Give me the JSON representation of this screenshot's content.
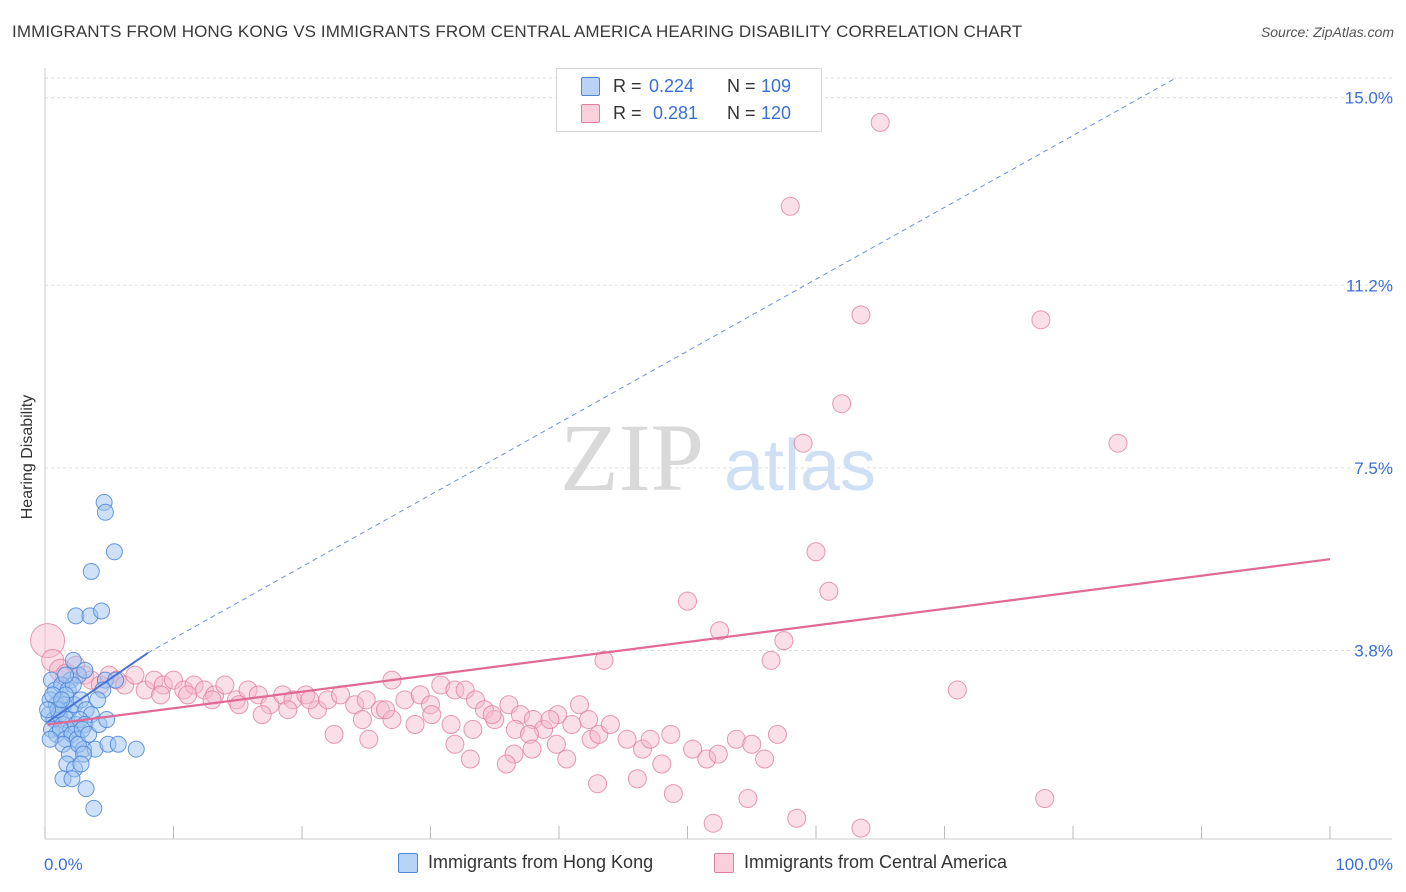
{
  "title": "IMMIGRANTS FROM HONG KONG VS IMMIGRANTS FROM CENTRAL AMERICA HEARING DISABILITY CORRELATION CHART",
  "source": "Source: ZipAtlas.com",
  "watermark": {
    "zip": "ZIP",
    "atlas": "atlas"
  },
  "colors": {
    "blue_fill": "#9ec3f2",
    "blue_stroke": "#4f86d8",
    "blue_line": "#4a73d8",
    "pink_fill": "#f5b8cb",
    "pink_stroke": "#e07fa0",
    "pink_line": "#e06a96",
    "tick_label": "#3b6fd6",
    "grid": "#dddddd"
  },
  "stats": [
    {
      "r_label": "R = ",
      "r_value": "0.224",
      "n_label": "N = ",
      "n_value": "109",
      "swatch": "blue"
    },
    {
      "r_label": "R = ",
      "r_value": "0.281",
      "n_label": "N = ",
      "n_value": "120",
      "swatch": "pink"
    }
  ],
  "chart_data": {
    "type": "scatter",
    "title": "IMMIGRANTS FROM HONG KONG VS IMMIGRANTS FROM CENTRAL AMERICA HEARING DISABILITY CORRELATION CHART",
    "xlabel": "",
    "ylabel": "Hearing Disability",
    "xlim": [
      0,
      100
    ],
    "ylim": [
      0,
      15.4
    ],
    "x_tick_labels": [
      "0.0%",
      "100.0%"
    ],
    "y_ticks": [
      3.8,
      7.5,
      11.2,
      15.0
    ],
    "y_tick_labels": [
      "3.8%",
      "7.5%",
      "11.2%",
      "15.0%"
    ],
    "grid": "horizontal dashed",
    "legend_position": "bottom-center",
    "series": [
      {
        "name": "Immigrants from Hong Kong",
        "color": "blue",
        "r": 0.224,
        "n": 109,
        "trend_solid": [
          [
            0.2,
            2.35
          ],
          [
            8.0,
            3.75
          ]
        ],
        "trend_dashed": [
          [
            8.0,
            3.75
          ],
          [
            88.0,
            15.4
          ]
        ],
        "points": [
          [
            4.6,
            6.8
          ],
          [
            4.7,
            6.6
          ],
          [
            5.4,
            5.8
          ],
          [
            3.6,
            5.4
          ],
          [
            2.4,
            4.5
          ],
          [
            3.5,
            4.5
          ],
          [
            4.4,
            4.6
          ],
          [
            2.0,
            3.2
          ],
          [
            2.6,
            3.3
          ],
          [
            4.7,
            3.2
          ],
          [
            4.5,
            3.0
          ],
          [
            0.5,
            3.2
          ],
          [
            0.8,
            3.0
          ],
          [
            1.3,
            3.1
          ],
          [
            1.8,
            3.0
          ],
          [
            2.2,
            3.1
          ],
          [
            1.6,
            2.9
          ],
          [
            0.4,
            2.8
          ],
          [
            0.9,
            2.7
          ],
          [
            1.5,
            2.7
          ],
          [
            1.9,
            2.6
          ],
          [
            2.3,
            2.7
          ],
          [
            2.8,
            2.8
          ],
          [
            3.2,
            2.6
          ],
          [
            3.6,
            2.5
          ],
          [
            0.3,
            2.5
          ],
          [
            0.7,
            2.4
          ],
          [
            1.1,
            2.5
          ],
          [
            1.4,
            2.3
          ],
          [
            1.7,
            2.4
          ],
          [
            2.0,
            2.2
          ],
          [
            2.4,
            2.3
          ],
          [
            2.7,
            2.4
          ],
          [
            3.1,
            2.3
          ],
          [
            0.5,
            2.2
          ],
          [
            0.9,
            2.1
          ],
          [
            1.2,
            2.2
          ],
          [
            1.6,
            2.0
          ],
          [
            2.1,
            2.1
          ],
          [
            2.5,
            2.0
          ],
          [
            3.0,
            1.8
          ],
          [
            3.9,
            1.8
          ],
          [
            1.4,
            1.9
          ],
          [
            1.9,
            1.7
          ],
          [
            2.6,
            1.9
          ],
          [
            4.9,
            1.9
          ],
          [
            7.1,
            1.8
          ],
          [
            5.7,
            1.9
          ],
          [
            3.0,
            1.7
          ],
          [
            1.7,
            1.5
          ],
          [
            2.3,
            1.4
          ],
          [
            2.8,
            1.5
          ],
          [
            1.4,
            1.2
          ],
          [
            2.1,
            1.2
          ],
          [
            3.2,
            1.0
          ],
          [
            3.8,
            0.6
          ],
          [
            0.6,
            2.9
          ],
          [
            1.0,
            2.6
          ],
          [
            1.3,
            2.8
          ],
          [
            2.9,
            2.2
          ],
          [
            3.4,
            2.1
          ],
          [
            4.2,
            2.3
          ],
          [
            0.2,
            2.6
          ],
          [
            4.8,
            2.4
          ],
          [
            5.5,
            3.2
          ],
          [
            4.1,
            2.8
          ],
          [
            1.6,
            3.3
          ],
          [
            2.2,
            3.6
          ],
          [
            3.1,
            3.4
          ],
          [
            0.4,
            2.0
          ]
        ]
      },
      {
        "name": "Immigrants from Central America",
        "color": "pink",
        "r": 0.281,
        "n": 120,
        "trend": [
          [
            0.2,
            2.3
          ],
          [
            100.0,
            5.65
          ]
        ],
        "points": [
          [
            65.0,
            14.5
          ],
          [
            58.0,
            12.8
          ],
          [
            63.5,
            10.6
          ],
          [
            77.5,
            10.5
          ],
          [
            62.0,
            8.8
          ],
          [
            83.5,
            8.0
          ],
          [
            59.0,
            8.0
          ],
          [
            60.0,
            5.8
          ],
          [
            61.0,
            5.0
          ],
          [
            50.0,
            4.8
          ],
          [
            52.5,
            4.2
          ],
          [
            57.5,
            4.0
          ],
          [
            56.5,
            3.6
          ],
          [
            43.5,
            3.6
          ],
          [
            71.0,
            3.0
          ],
          [
            0.2,
            4.0
          ],
          [
            0.6,
            3.6
          ],
          [
            1.2,
            3.4
          ],
          [
            1.7,
            3.3
          ],
          [
            2.4,
            3.5
          ],
          [
            3.1,
            3.3
          ],
          [
            3.6,
            3.2
          ],
          [
            4.3,
            3.1
          ],
          [
            5.0,
            3.3
          ],
          [
            5.6,
            3.2
          ],
          [
            6.2,
            3.1
          ],
          [
            7.0,
            3.3
          ],
          [
            7.8,
            3.0
          ],
          [
            8.5,
            3.2
          ],
          [
            9.2,
            3.1
          ],
          [
            10.0,
            3.2
          ],
          [
            10.8,
            3.0
          ],
          [
            11.6,
            3.1
          ],
          [
            12.4,
            3.0
          ],
          [
            13.2,
            2.9
          ],
          [
            14.0,
            3.1
          ],
          [
            14.9,
            2.8
          ],
          [
            15.8,
            3.0
          ],
          [
            16.6,
            2.9
          ],
          [
            17.5,
            2.7
          ],
          [
            18.5,
            2.9
          ],
          [
            19.3,
            2.8
          ],
          [
            20.3,
            2.9
          ],
          [
            21.2,
            2.6
          ],
          [
            22.0,
            2.8
          ],
          [
            23.0,
            2.9
          ],
          [
            24.1,
            2.7
          ],
          [
            25.0,
            2.8
          ],
          [
            26.1,
            2.6
          ],
          [
            27.0,
            3.2
          ],
          [
            28.0,
            2.8
          ],
          [
            29.2,
            2.9
          ],
          [
            30.0,
            2.7
          ],
          [
            30.8,
            3.1
          ],
          [
            31.9,
            3.0
          ],
          [
            32.7,
            3.0
          ],
          [
            33.5,
            2.8
          ],
          [
            34.2,
            2.6
          ],
          [
            35.0,
            2.4
          ],
          [
            36.1,
            2.7
          ],
          [
            37.0,
            2.5
          ],
          [
            38.0,
            2.4
          ],
          [
            38.8,
            2.2
          ],
          [
            39.9,
            2.5
          ],
          [
            41.0,
            2.3
          ],
          [
            42.5,
            2.0
          ],
          [
            43.1,
            2.1
          ],
          [
            44.0,
            2.3
          ],
          [
            45.3,
            2.0
          ],
          [
            46.5,
            1.8
          ],
          [
            47.1,
            2.0
          ],
          [
            48.7,
            2.1
          ],
          [
            50.4,
            1.8
          ],
          [
            51.5,
            1.6
          ],
          [
            52.4,
            1.7
          ],
          [
            53.8,
            2.0
          ],
          [
            55.0,
            1.9
          ],
          [
            56.0,
            1.6
          ],
          [
            57.0,
            2.1
          ],
          [
            27.0,
            2.4
          ],
          [
            28.8,
            2.3
          ],
          [
            30.1,
            2.5
          ],
          [
            31.6,
            2.3
          ],
          [
            33.3,
            2.2
          ],
          [
            34.8,
            2.5
          ],
          [
            36.6,
            2.2
          ],
          [
            37.7,
            2.1
          ],
          [
            39.3,
            2.4
          ],
          [
            41.6,
            2.7
          ],
          [
            42.3,
            2.4
          ],
          [
            36.5,
            1.7
          ],
          [
            35.9,
            1.5
          ],
          [
            37.9,
            1.8
          ],
          [
            39.8,
            1.9
          ],
          [
            40.6,
            1.6
          ],
          [
            33.1,
            1.6
          ],
          [
            31.9,
            1.9
          ],
          [
            26.5,
            2.6
          ],
          [
            24.7,
            2.4
          ],
          [
            22.5,
            2.1
          ],
          [
            20.6,
            2.8
          ],
          [
            18.9,
            2.6
          ],
          [
            16.9,
            2.5
          ],
          [
            15.1,
            2.7
          ],
          [
            13.0,
            2.8
          ],
          [
            11.1,
            2.9
          ],
          [
            9.0,
            2.9
          ],
          [
            46.1,
            1.2
          ],
          [
            48.0,
            1.5
          ],
          [
            48.9,
            0.9
          ],
          [
            54.7,
            0.8
          ],
          [
            58.5,
            0.4
          ],
          [
            63.5,
            0.2
          ],
          [
            52.0,
            0.3
          ],
          [
            77.8,
            0.8
          ],
          [
            43.0,
            1.1
          ],
          [
            25.2,
            2.0
          ]
        ]
      }
    ]
  },
  "legend": [
    {
      "label": "Immigrants from Hong Kong",
      "swatch": "blue"
    },
    {
      "label": "Immigrants from Central America",
      "swatch": "pink"
    }
  ]
}
